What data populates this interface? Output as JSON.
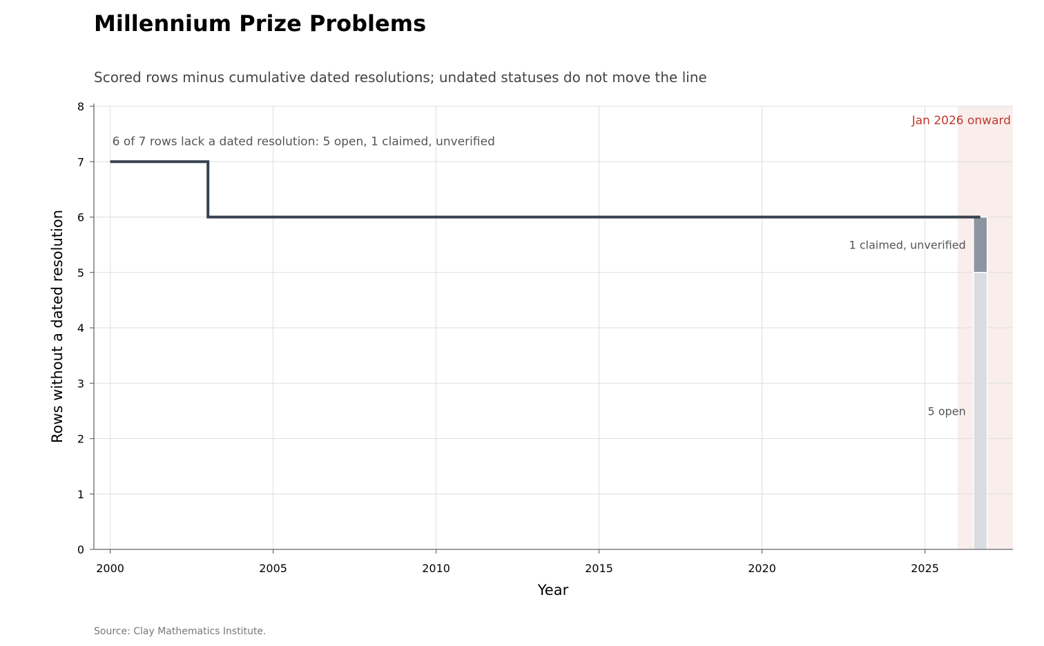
{
  "chart_data": {
    "type": "line",
    "title": "Millennium Prize Problems",
    "subtitle": "Scored rows minus cumulative dated resolutions; undated statuses do not move the line",
    "xlabel": "Year",
    "ylabel": "Rows without a dated resolution",
    "xlim": [
      1999.5,
      2027.7
    ],
    "ylim": [
      0,
      8
    ],
    "x_ticks": [
      2000,
      2005,
      2010,
      2015,
      2020,
      2025
    ],
    "y_ticks": [
      0,
      1,
      2,
      3,
      4,
      5,
      6,
      7,
      8
    ],
    "grid": true,
    "series": [
      {
        "step": "post",
        "color": "#37424f",
        "points": [
          {
            "x": 2000,
            "y": 7
          },
          {
            "x": 2003,
            "y": 6
          },
          {
            "x": 2026.7,
            "y": 6
          }
        ]
      }
    ],
    "stacked_bar": {
      "x": 2026.7,
      "segments": [
        {
          "label": "5 open",
          "value": 5,
          "color": "#d9dde2"
        },
        {
          "label": "1 claimed, unverified",
          "value": 1,
          "color": "#8d96a0"
        }
      ]
    },
    "shaded_region": {
      "x_start": 2026.0,
      "x_end": 2027.7,
      "label": "Jan 2026 onward",
      "color": "#f9eeec"
    },
    "annotation": {
      "text": "6 of 7 rows lack a dated resolution: 5 open, 1 claimed, unverified",
      "x": 2000,
      "y": 7
    },
    "source": "Source: Clay Mathematics Institute."
  }
}
